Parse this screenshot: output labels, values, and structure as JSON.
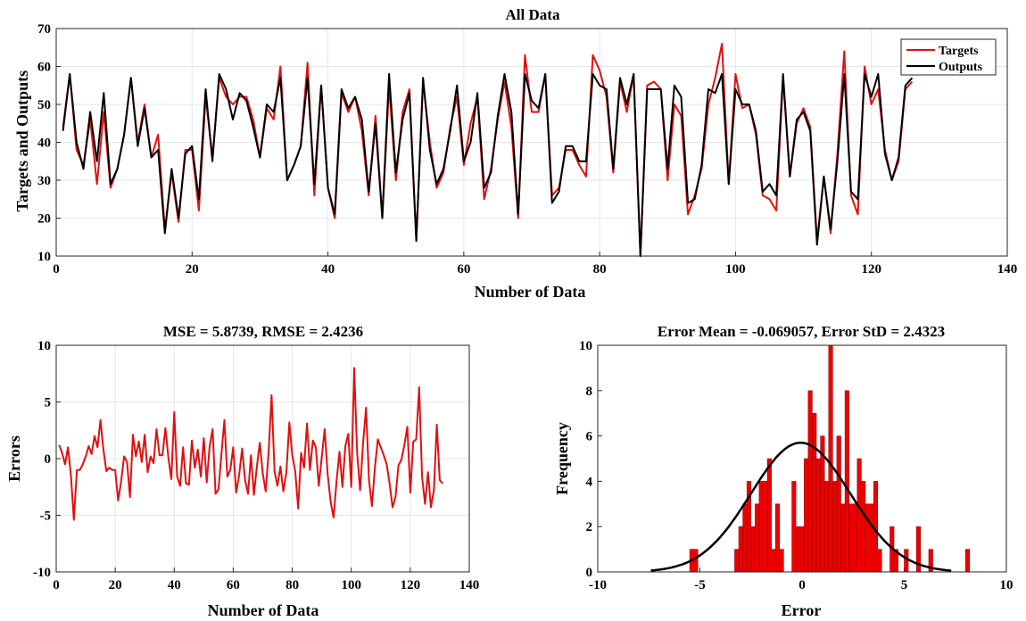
{
  "chart_data": [
    {
      "type": "line",
      "title": "All Data",
      "xlabel": "Number of Data",
      "ylabel": "Targets and Outputs",
      "xlim": [
        0,
        140
      ],
      "ylim": [
        10,
        70
      ],
      "xticks": [
        0,
        20,
        40,
        60,
        80,
        100,
        120,
        140
      ],
      "yticks": [
        10,
        20,
        30,
        40,
        50,
        60,
        70
      ],
      "grid": true,
      "legend": "top-right",
      "x": [
        1,
        2,
        3,
        4,
        5,
        6,
        7,
        8,
        9,
        10,
        11,
        12,
        13,
        14,
        15,
        16,
        17,
        18,
        19,
        20,
        21,
        22,
        23,
        24,
        25,
        26,
        27,
        28,
        29,
        30,
        31,
        32,
        33,
        34,
        35,
        36,
        37,
        38,
        39,
        40,
        41,
        42,
        43,
        44,
        45,
        46,
        47,
        48,
        49,
        50,
        51,
        52,
        53,
        54,
        55,
        56,
        57,
        58,
        59,
        60,
        61,
        62,
        63,
        64,
        65,
        66,
        67,
        68,
        69,
        70,
        71,
        72,
        73,
        74,
        75,
        76,
        77,
        78,
        79,
        80,
        81,
        82,
        83,
        84,
        85,
        86,
        87,
        88,
        89,
        90,
        91,
        92,
        93,
        94,
        95,
        96,
        97,
        98,
        99,
        100,
        101,
        102,
        103,
        104,
        105,
        106,
        107,
        108,
        109,
        110,
        111,
        112,
        113,
        114,
        115,
        116,
        117,
        118,
        119,
        120,
        121,
        122,
        123,
        124,
        125,
        126
      ],
      "series": [
        {
          "name": "Targets",
          "color": "#e01010",
          "values": [
            44,
            58,
            38,
            34,
            46,
            29,
            48,
            28,
            33,
            42,
            57,
            40,
            50,
            36,
            42,
            17,
            32,
            19,
            38,
            38,
            22,
            52,
            36,
            57,
            52,
            50,
            52,
            52,
            46,
            36,
            49,
            46,
            60,
            30,
            34,
            39,
            61,
            26,
            55,
            28,
            20,
            53,
            48,
            52,
            43,
            26,
            47,
            20,
            55,
            30,
            48,
            54,
            14,
            56,
            40,
            28,
            32,
            44,
            52,
            34,
            45,
            52,
            25,
            33,
            46,
            56,
            44,
            20,
            63,
            48,
            48,
            58,
            26,
            28,
            38,
            38,
            34,
            31,
            63,
            59,
            52,
            32,
            56,
            48,
            58,
            10,
            55,
            56,
            54,
            30,
            50,
            47,
            21,
            26,
            33,
            50,
            57,
            66,
            29,
            58,
            49,
            50,
            42,
            26,
            25,
            22,
            57,
            31,
            45,
            49,
            44,
            14,
            31,
            16,
            37,
            64,
            26,
            21,
            60,
            50,
            54,
            38,
            30,
            35,
            54,
            56
          ]
        },
        {
          "name": "Outputs",
          "color": "#000000",
          "values": [
            43,
            58,
            40,
            33,
            48,
            35,
            53,
            29,
            33,
            42,
            57,
            39,
            49,
            36,
            38,
            16,
            33,
            20,
            37,
            39,
            25,
            54,
            35,
            58,
            54,
            46,
            53,
            51,
            44,
            36,
            50,
            48,
            57,
            30,
            34,
            39,
            57,
            29,
            55,
            28,
            21,
            54,
            49,
            52,
            46,
            27,
            45,
            20,
            58,
            32,
            46,
            53,
            14,
            57,
            38,
            29,
            33,
            43,
            55,
            35,
            40,
            53,
            28,
            32,
            47,
            58,
            48,
            21,
            58,
            51,
            49,
            58,
            24,
            27,
            39,
            39,
            35,
            35,
            58,
            55,
            54,
            33,
            57,
            50,
            58,
            10,
            54,
            54,
            54,
            33,
            55,
            52,
            24,
            25,
            34,
            54,
            53,
            58,
            29,
            54,
            50,
            50,
            43,
            27,
            29,
            26,
            58,
            31,
            46,
            48,
            43,
            13,
            31,
            17,
            35,
            58,
            27,
            25,
            58,
            52,
            58,
            37,
            30,
            36,
            55,
            57
          ]
        }
      ]
    },
    {
      "type": "line",
      "title": "MSE = 5.8739, RMSE = 2.4236",
      "xlabel": "Number of Data",
      "ylabel": "Errors",
      "xlim": [
        0,
        140
      ],
      "ylim": [
        -10,
        10
      ],
      "xticks": [
        0,
        20,
        40,
        60,
        80,
        100,
        120,
        140
      ],
      "yticks": [
        -10,
        -5,
        0,
        5,
        10
      ],
      "grid": true,
      "series": [
        {
          "color": "#e01010",
          "values": [
            1.2,
            0.5,
            -0.5,
            1.0,
            -1.5,
            -5.4,
            -1.0,
            -1.0,
            -0.5,
            0.2,
            1.1,
            0.4,
            2.0,
            1.0,
            3.4,
            0.8,
            -1.1,
            -0.8,
            -1.0,
            -1.0,
            -3.7,
            -2.0,
            0.2,
            -0.3,
            -3.4,
            2.1,
            0.2,
            1.5,
            -0.3,
            2.1,
            -1.2,
            0.2,
            -0.4,
            2.6,
            0.3,
            0.3,
            2.7,
            0.1,
            -1.8,
            4.1,
            -1.6,
            -2.4,
            1.0,
            -2.2,
            -2.3,
            1.6,
            -0.8,
            0.8,
            -1.6,
            1.8,
            -2.1,
            1.1,
            2.6,
            -3.1,
            -2.7,
            0.4,
            3.4,
            -1.6,
            -1.0,
            1.0,
            -3.0,
            -1.5,
            0.9,
            -1.9,
            -3.1,
            0.3,
            -3.2,
            -0.7,
            1.4,
            -1.3,
            -2.9,
            0.6,
            5.6,
            -1.1,
            -2.4,
            -0.7,
            -2.9,
            -1.2,
            3.2,
            0.3,
            -1.1,
            -4.4,
            0.5,
            -0.8,
            3.1,
            -1.0,
            1.6,
            1.0,
            -2.4,
            0.1,
            2.6,
            -1.4,
            -3.8,
            -5.2,
            -2.0,
            0.6,
            -2.5,
            1.1,
            2.2,
            -2.5,
            8.0,
            0.5,
            -2.8,
            1.3,
            4.5,
            -1.9,
            -4.2,
            -0.8,
            1.7,
            1.0,
            0.3,
            -0.5,
            -2.2,
            -4.3,
            -3.4,
            -0.6,
            -0.1,
            1.2,
            2.8,
            -3.0,
            1.5,
            1.7,
            6.3,
            -1.6,
            -4.0,
            -1.2,
            -4.3,
            -2.8,
            3.0,
            -1.9,
            -2.2
          ]
        }
      ]
    },
    {
      "type": "bar",
      "title": "Error Mean = -0.069057, Error StD = 2.4323",
      "xlabel": "Error",
      "ylabel": "Frequency",
      "xlim": [
        -10,
        10
      ],
      "ylim": [
        0,
        10
      ],
      "xticks": [
        -10,
        -5,
        0,
        5,
        10
      ],
      "yticks": [
        0,
        2,
        4,
        6,
        8,
        10
      ],
      "bar_color": "#ee0000",
      "fit_color": "#000000",
      "bins_start": -5.5,
      "bin_width": 0.2,
      "values": [
        1,
        1,
        0,
        0,
        0,
        0,
        0,
        0,
        0,
        0,
        0,
        1,
        2,
        3,
        4,
        2,
        3,
        4,
        4,
        5,
        1,
        3,
        1,
        0,
        0,
        4,
        2,
        2,
        5,
        8,
        7,
        5,
        6,
        4,
        10,
        4,
        6,
        3,
        8,
        3,
        3,
        5,
        4,
        3,
        3,
        4,
        1,
        0,
        0,
        2,
        1,
        0,
        0,
        0,
        0,
        0,
        0,
        0,
        0,
        0,
        0,
        0,
        0,
        0,
        0,
        0,
        0,
        0,
        0,
        0,
        0,
        0,
        0,
        0,
        0,
        0,
        0,
        0,
        0,
        0,
        0,
        0,
        0,
        0,
        0,
        0,
        0,
        0,
        0,
        0,
        0,
        0,
        0,
        0,
        0,
        0,
        0,
        0,
        0,
        0,
        0,
        0,
        0,
        0,
        0,
        0,
        0,
        0,
        0,
        0,
        0,
        0,
        0,
        0,
        0,
        0,
        0,
        0,
        0,
        0,
        0,
        0,
        0,
        0,
        0,
        0,
        0,
        0,
        0,
        0,
        0,
        0,
        0,
        0,
        0,
        0,
        0,
        0,
        0,
        0
      ],
      "extra_bars": [
        {
          "x": 5.6,
          "value": 2
        },
        {
          "x": 5.0,
          "value": 1
        },
        {
          "x": 6.2,
          "value": 1
        },
        {
          "x": 8.0,
          "value": 1
        }
      ],
      "fit": {
        "mean": -0.069057,
        "std": 2.4323,
        "peak": 5.7,
        "xmin": -7.4,
        "xmax": 7.3
      }
    }
  ]
}
